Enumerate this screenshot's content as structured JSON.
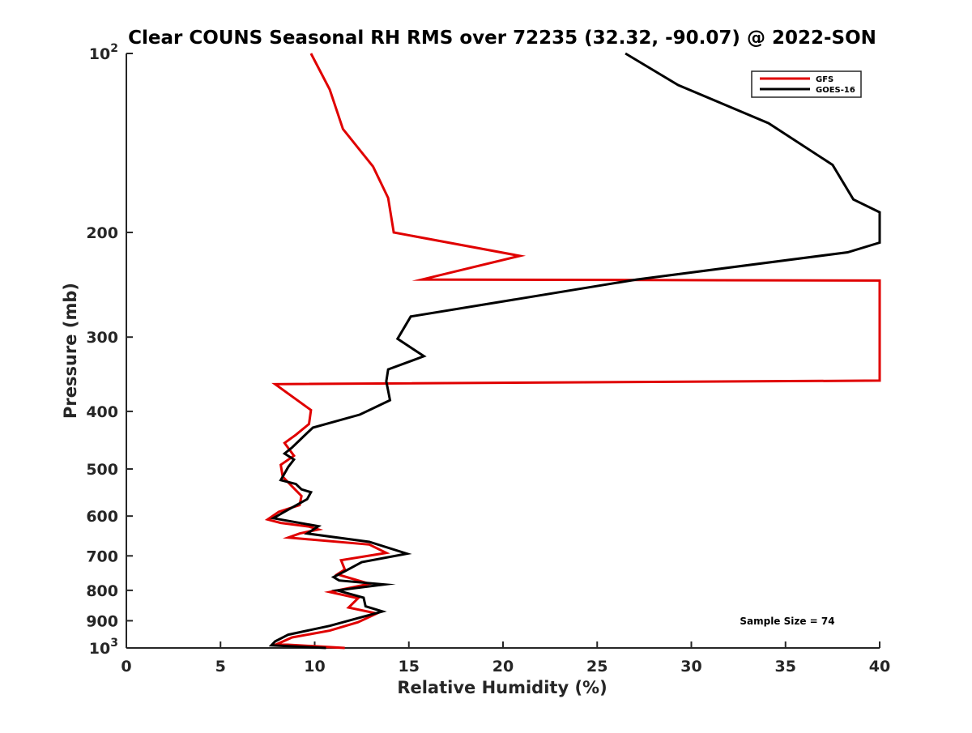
{
  "chart_data": {
    "type": "line",
    "title": "Clear COUNS Seasonal RH RMS over 72235 (32.32, -90.07) @ 2022-SON",
    "xlabel": "Relative Humidity (%)",
    "ylabel": "Pressure (mb)",
    "xlim": [
      0,
      40
    ],
    "ylim": [
      100,
      1000
    ],
    "y_scale": "log",
    "y_reversed": true,
    "grid": false,
    "legend_position": "top-right",
    "x_ticks": [
      {
        "value": 0,
        "label": "0"
      },
      {
        "value": 5,
        "label": "5"
      },
      {
        "value": 10,
        "label": "10"
      },
      {
        "value": 15,
        "label": "15"
      },
      {
        "value": 20,
        "label": "20"
      },
      {
        "value": 25,
        "label": "25"
      },
      {
        "value": 30,
        "label": "30"
      },
      {
        "value": 35,
        "label": "35"
      },
      {
        "value": 40,
        "label": "40"
      }
    ],
    "y_ticks": [
      {
        "value": 100,
        "base": "10",
        "exp": "2"
      },
      {
        "value": 200,
        "base": "200",
        "exp": ""
      },
      {
        "value": 300,
        "base": "300",
        "exp": ""
      },
      {
        "value": 400,
        "base": "400",
        "exp": ""
      },
      {
        "value": 500,
        "base": "500",
        "exp": ""
      },
      {
        "value": 600,
        "base": "600",
        "exp": ""
      },
      {
        "value": 700,
        "base": "700",
        "exp": ""
      },
      {
        "value": 800,
        "base": "800",
        "exp": ""
      },
      {
        "value": 900,
        "base": "900",
        "exp": ""
      },
      {
        "value": 1000,
        "base": "10",
        "exp": "3"
      }
    ],
    "annotation": "Sample Size = 74",
    "series": [
      {
        "name": "GFS",
        "color": "#e00000",
        "points": [
          [
            9.8,
            100
          ],
          [
            10.8,
            115
          ],
          [
            11.5,
            134
          ],
          [
            13.1,
            155
          ],
          [
            13.9,
            175
          ],
          [
            14.2,
            200
          ],
          [
            20.9,
            219
          ],
          [
            15.7,
            240
          ],
          [
            40,
            241
          ],
          [
            40,
            355
          ],
          [
            7.9,
            360
          ],
          [
            9.8,
            398
          ],
          [
            9.7,
            420
          ],
          [
            9.0,
            438
          ],
          [
            8.4,
            452
          ],
          [
            8.9,
            475
          ],
          [
            8.2,
            492
          ],
          [
            8.3,
            515
          ],
          [
            8.8,
            535
          ],
          [
            9.3,
            555
          ],
          [
            9.2,
            575
          ],
          [
            8.1,
            590
          ],
          [
            7.5,
            608
          ],
          [
            8.2,
            616
          ],
          [
            9.7,
            625
          ],
          [
            10.2,
            632
          ],
          [
            9.2,
            642
          ],
          [
            8.6,
            652
          ],
          [
            12.9,
            670
          ],
          [
            13.8,
            692
          ],
          [
            11.4,
            712
          ],
          [
            11.6,
            738
          ],
          [
            11.2,
            752
          ],
          [
            12.9,
            780
          ],
          [
            10.8,
            805
          ],
          [
            12.3,
            825
          ],
          [
            11.8,
            855
          ],
          [
            13.3,
            875
          ],
          [
            12.3,
            905
          ],
          [
            10.8,
            935
          ],
          [
            8.8,
            960
          ],
          [
            8.0,
            985
          ],
          [
            11.6,
            1000
          ]
        ]
      },
      {
        "name": "GOES-16",
        "color": "#000000",
        "points": [
          [
            26.5,
            100
          ],
          [
            29.3,
            113
          ],
          [
            34.1,
            131
          ],
          [
            37.5,
            154
          ],
          [
            38.6,
            176
          ],
          [
            40,
            185
          ],
          [
            40,
            208
          ],
          [
            38.3,
            216
          ],
          [
            27.1,
            240
          ],
          [
            15.1,
            277
          ],
          [
            14.4,
            302
          ],
          [
            15.8,
            323
          ],
          [
            13.9,
            340
          ],
          [
            13.8,
            356
          ],
          [
            14.0,
            383
          ],
          [
            12.4,
            405
          ],
          [
            9.9,
            426
          ],
          [
            9.4,
            441
          ],
          [
            8.8,
            460
          ],
          [
            8.4,
            471
          ],
          [
            8.9,
            482
          ],
          [
            8.6,
            496
          ],
          [
            8.2,
            522
          ],
          [
            9.0,
            530
          ],
          [
            9.3,
            541
          ],
          [
            9.8,
            547
          ],
          [
            9.6,
            562
          ],
          [
            8.4,
            590
          ],
          [
            7.8,
            605
          ],
          [
            10.2,
            624
          ],
          [
            9.6,
            642
          ],
          [
            12.9,
            663
          ],
          [
            14.9,
            694
          ],
          [
            12.5,
            717
          ],
          [
            11.6,
            743
          ],
          [
            11.0,
            760
          ],
          [
            11.3,
            770
          ],
          [
            13.7,
            782
          ],
          [
            11.2,
            800
          ],
          [
            12.6,
            823
          ],
          [
            12.7,
            851
          ],
          [
            13.6,
            868
          ],
          [
            10.8,
            918
          ],
          [
            8.6,
            950
          ],
          [
            7.9,
            975
          ],
          [
            7.7,
            990
          ],
          [
            10.6,
            1000
          ]
        ]
      }
    ]
  }
}
